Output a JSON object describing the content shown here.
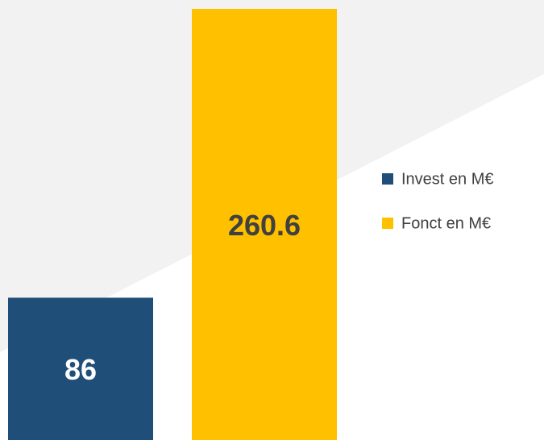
{
  "chart_data": {
    "type": "bar",
    "categories": [
      null
    ],
    "series": [
      {
        "name": "Invest en M€",
        "color": "#1f4e79",
        "values": [
          86
        ]
      },
      {
        "name": "Fonct en M€",
        "color": "#ffc000",
        "values": [
          260.6
        ]
      }
    ],
    "legend": "right"
  }
}
